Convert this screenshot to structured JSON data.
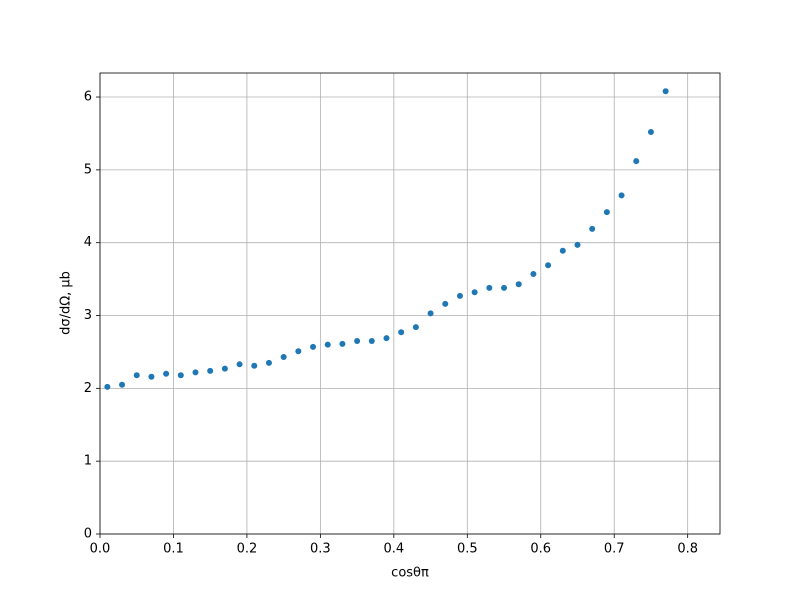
{
  "chart_data": {
    "type": "scatter",
    "xlabel": "cosθπ",
    "ylabel": "dσ/dΩ, μb",
    "color": "#1f77b4",
    "grid": true,
    "xlim": [
      0,
      0.844
    ],
    "ylim": [
      0,
      6.33
    ],
    "xticks": [
      {
        "value": 0,
        "label": "0.0"
      },
      0.1,
      0.2,
      0.3,
      0.4,
      0.5,
      0.6,
      0.7,
      0.8
    ],
    "yticks": [
      0,
      1,
      2,
      3,
      4,
      5,
      6
    ],
    "x": [
      0.01,
      0.03,
      0.05,
      0.07,
      0.09,
      0.11,
      0.13,
      0.15,
      0.17,
      0.19,
      0.21,
      0.23,
      0.25,
      0.27,
      0.29,
      0.31,
      0.33,
      0.35,
      0.37,
      0.39,
      0.41,
      0.43,
      0.45,
      0.47,
      0.49,
      0.51,
      0.53,
      0.55,
      0.57,
      0.59,
      0.61,
      0.63,
      0.65,
      0.67,
      0.69,
      0.71,
      0.73,
      0.75,
      0.77
    ],
    "values": [
      2.02,
      2.05,
      2.18,
      2.16,
      2.2,
      2.18,
      2.22,
      2.24,
      2.27,
      2.33,
      2.31,
      2.35,
      2.43,
      2.51,
      2.57,
      2.6,
      2.61,
      2.65,
      2.65,
      2.69,
      2.77,
      2.84,
      3.03,
      3.16,
      3.27,
      3.32,
      3.38,
      3.38,
      3.43,
      3.57,
      3.69,
      3.89,
      3.97,
      4.19,
      4.42,
      4.65,
      5.12,
      5.52,
      6.08
    ]
  }
}
